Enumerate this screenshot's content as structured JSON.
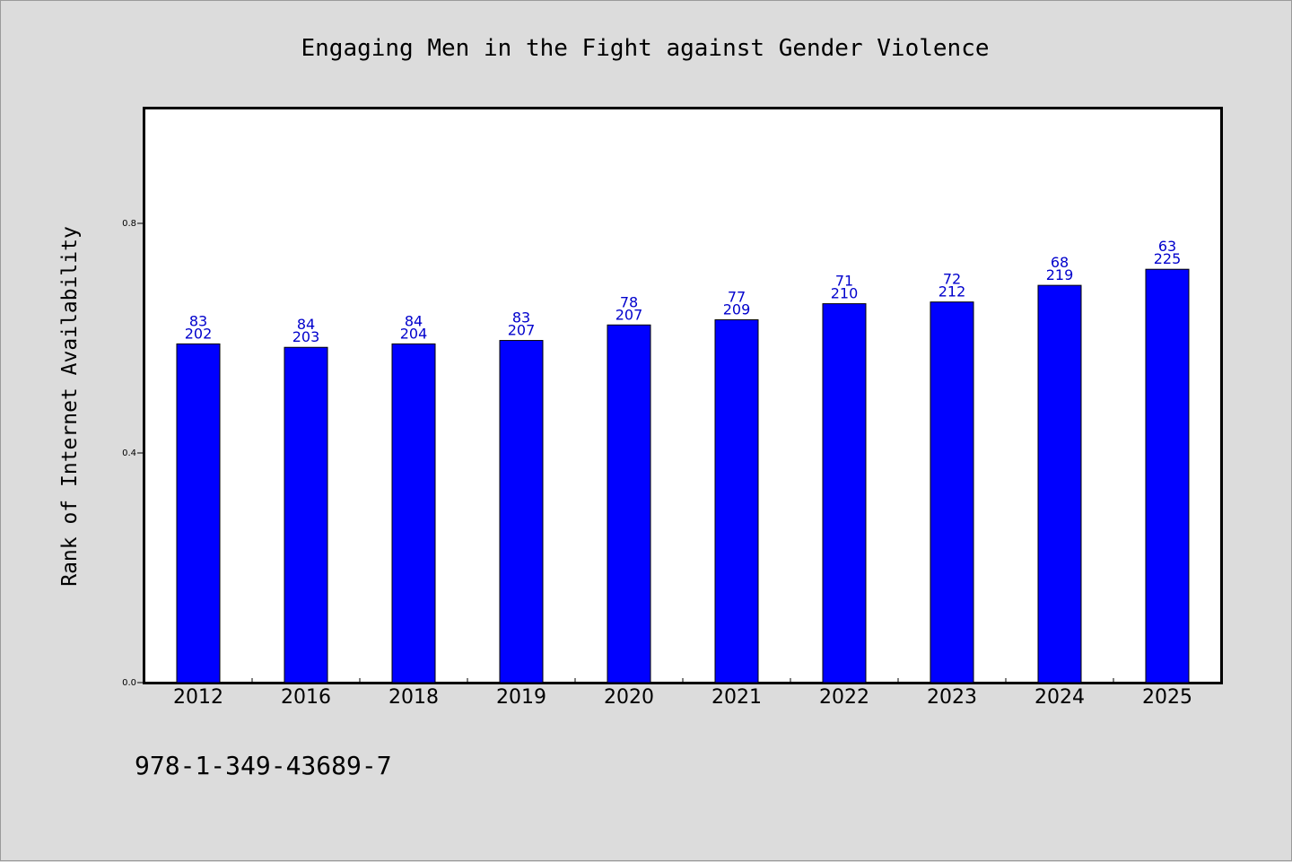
{
  "title": "Engaging Men in the Fight against Gender Violence",
  "footnote": "978-1-349-43689-7",
  "colors": {
    "background": "#dcdcdc",
    "plot_background": "#ffffff",
    "bar": "#0000ff",
    "data_label": "#0000cc"
  },
  "chart_data": {
    "type": "bar",
    "title": "Engaging Men in the Fight against Gender Violence",
    "xlabel": "",
    "ylabel": "Rank of Internet Availability",
    "categories": [
      "2012",
      "2016",
      "2018",
      "2019",
      "2020",
      "2021",
      "2022",
      "2023",
      "2024",
      "2025"
    ],
    "values": [
      0.59,
      0.584,
      0.59,
      0.596,
      0.623,
      0.632,
      0.66,
      0.663,
      0.692,
      0.72
    ],
    "labels_top": [
      "83",
      "84",
      "84",
      "83",
      "78",
      "77",
      "71",
      "72",
      "68",
      "63"
    ],
    "labels_bottom": [
      "202",
      "203",
      "204",
      "207",
      "207",
      "209",
      "210",
      "212",
      "219",
      "225"
    ],
    "yticks": [
      0.0,
      0.4,
      0.8
    ],
    "ytick_labels": [
      "0.0",
      "0.4",
      "0.8"
    ],
    "ylim": [
      0,
      1.0
    ],
    "grid": false,
    "legend": "none"
  }
}
